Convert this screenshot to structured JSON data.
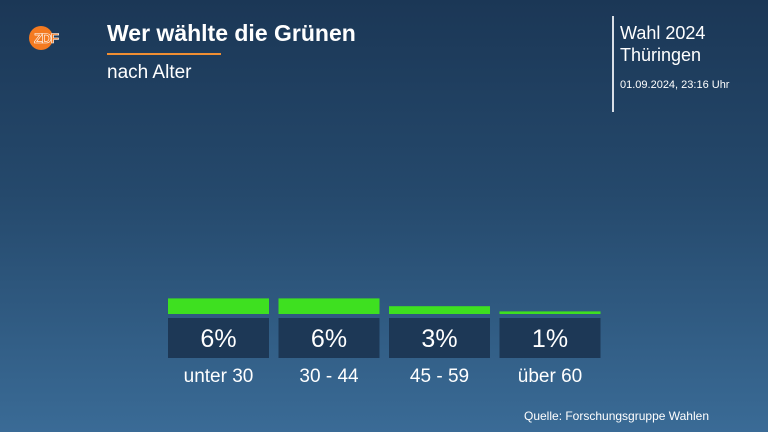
{
  "header": {
    "logo_text": "ZDF",
    "title": "Wer wählte die Grünen",
    "subtitle": "nach Alter",
    "event_line1": "Wahl 2024",
    "event_line2": "Thüringen",
    "timestamp": "01.09.2024, 23:16 Uhr"
  },
  "footer": {
    "source": "Quelle: Forschungsgruppe Wahlen"
  },
  "colors": {
    "bar": "#3ee020",
    "label_box": "#1d3856",
    "accent": "#f18e32",
    "logo": "#f47a20"
  },
  "chart_data": {
    "type": "bar",
    "title": "Wer wählte die Grünen",
    "subtitle": "nach Alter",
    "categories": [
      "unter 30",
      "30 - 44",
      "45 - 59",
      "über 60"
    ],
    "values": [
      6,
      6,
      3,
      1
    ],
    "value_labels": [
      "6%",
      "6%",
      "3%",
      "1%"
    ],
    "unit": "%",
    "ylim": [
      0,
      100
    ],
    "grid": false,
    "legend": "none"
  }
}
